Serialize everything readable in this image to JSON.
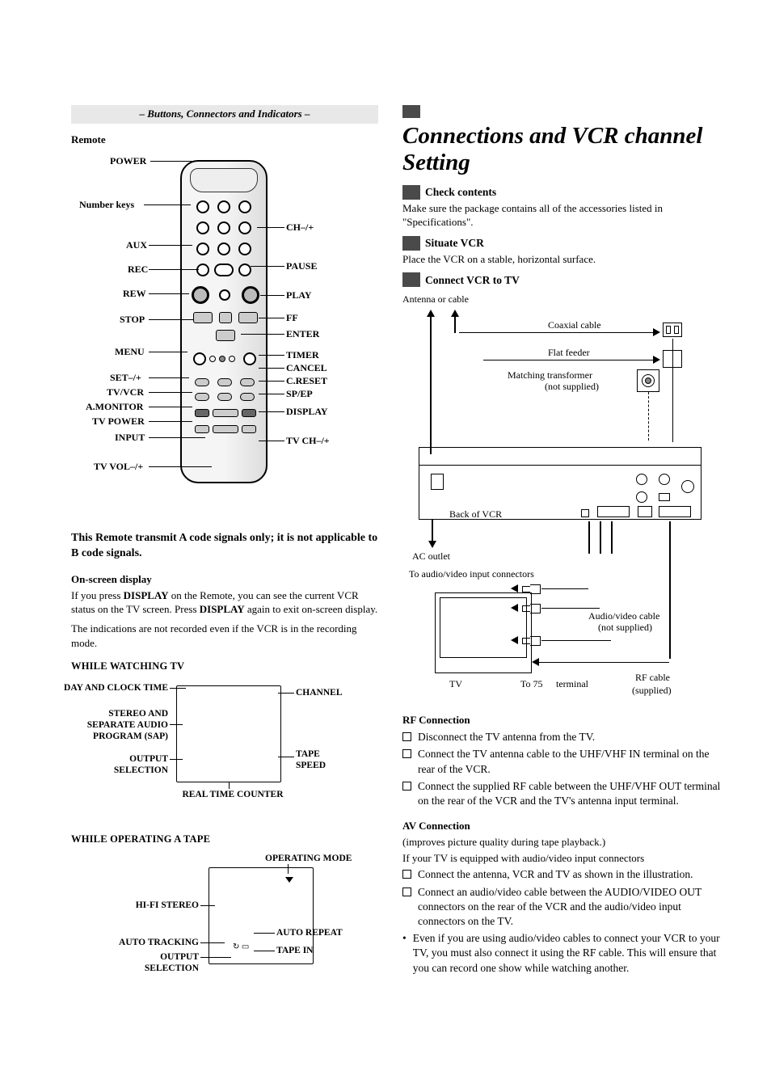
{
  "left": {
    "sectionBar": "– Buttons, Connectors and Indicators –",
    "remoteHeading": "Remote",
    "remoteLabels": {
      "power": "POWER",
      "numberKeys": "Number keys",
      "aux": "AUX",
      "rec": "REC",
      "rew": "REW",
      "stop": "STOP",
      "menu": "MENU",
      "setpm": "SET–/+",
      "tvvcr": "TV/VCR",
      "amonitor": "A.MONITOR",
      "tvpower": "TV POWER",
      "input": "INPUT",
      "tvvol": "TV VOL–/+",
      "chpm": "CH–/+",
      "pause": "PAUSE",
      "play": "PLAY",
      "ff": "FF",
      "enter": "ENTER",
      "timer": "TIMER",
      "cancel": "CANCEL",
      "creset": "C.RESET",
      "spep": "SP/EP",
      "display": "DISPLAY",
      "tvch": "TV CH–/+"
    },
    "remoteNote": "This Remote transmit A code signals only; it is not applicable to B code signals.",
    "osdHeading": "On-screen display",
    "osdPara1a": "If you press ",
    "osdDisplay": "DISPLAY",
    "osdPara1b": " on the Remote, you can see the current VCR status on the TV screen. Press ",
    "osdPara1c": " again to exit on-screen display.",
    "osdPara2": "The indications are not recorded even if the VCR is in the recording mode.",
    "whileTV": "WHILE WATCHING TV",
    "osdLabels": {
      "dayClock": "DAY AND CLOCK TIME",
      "stereoSap1": "STEREO AND",
      "stereoSap2": "SEPARATE AUDIO",
      "stereoSap3": "PROGRAM (SAP)",
      "output1": "OUTPUT",
      "output2": "SELECTION",
      "channel": "CHANNEL",
      "tape1": "TAPE",
      "tape2": "SPEED",
      "rtc": "REAL TIME COUNTER"
    },
    "whileTape": "WHILE OPERATING A TAPE",
    "tapeLabels": {
      "opMode": "OPERATING MODE",
      "hifi": "HI-FI STEREO",
      "autoTrack": "AUTO TRACKING",
      "output1": "OUTPUT",
      "output2": "SELECTION",
      "autoRepeat": "AUTO REPEAT",
      "tapeIn": "TAPE IN"
    }
  },
  "right": {
    "title": "Connections and VCR channel Setting",
    "step1": "Check contents",
    "step1Body": "Make sure the package contains all of the accessories listed in \"Specifications\".",
    "step2": "Situate VCR",
    "step2Body": "Place the VCR on a stable, horizontal surface.",
    "step3": "Connect VCR to TV",
    "diagram": {
      "antenna": "Antenna or cable",
      "coax": "Coaxial cable",
      "flat": "Flat feeder",
      "match1": "Matching transformer",
      "match2": "(not supplied)",
      "backVcr": "Back of VCR",
      "acOutlet": "AC outlet",
      "toAv": "To audio/video input connectors",
      "av1": "Audio/video cable",
      "av2": "(not supplied)",
      "tv": "TV",
      "to75a": "To 75",
      "to75b": "terminal",
      "rf1": "RF cable",
      "rf2": "(supplied)"
    },
    "rfHeading": "RF Connection",
    "rfSteps": [
      "Disconnect the TV antenna from the TV.",
      "Connect the TV antenna cable to the UHF/VHF IN terminal on the rear of the VCR.",
      "Connect the supplied RF cable between the UHF/VHF OUT terminal on the rear of the VCR and the TV's antenna input terminal."
    ],
    "avHeading": "AV Connection",
    "avSub": "(improves picture quality during tape playback.)",
    "avIntro": "If your TV is equipped with audio/video input connectors",
    "avSteps": [
      "Connect the antenna, VCR and TV as shown in the illustration.",
      "Connect an audio/video cable between the AUDIO/VIDEO OUT connectors on the rear of the VCR and the audio/video input connectors on the TV."
    ],
    "avNote": "Even if you are using audio/video cables to connect your VCR to your TV, you must also connect it using the RF cable. This will ensure that you can record one show while watching another."
  }
}
